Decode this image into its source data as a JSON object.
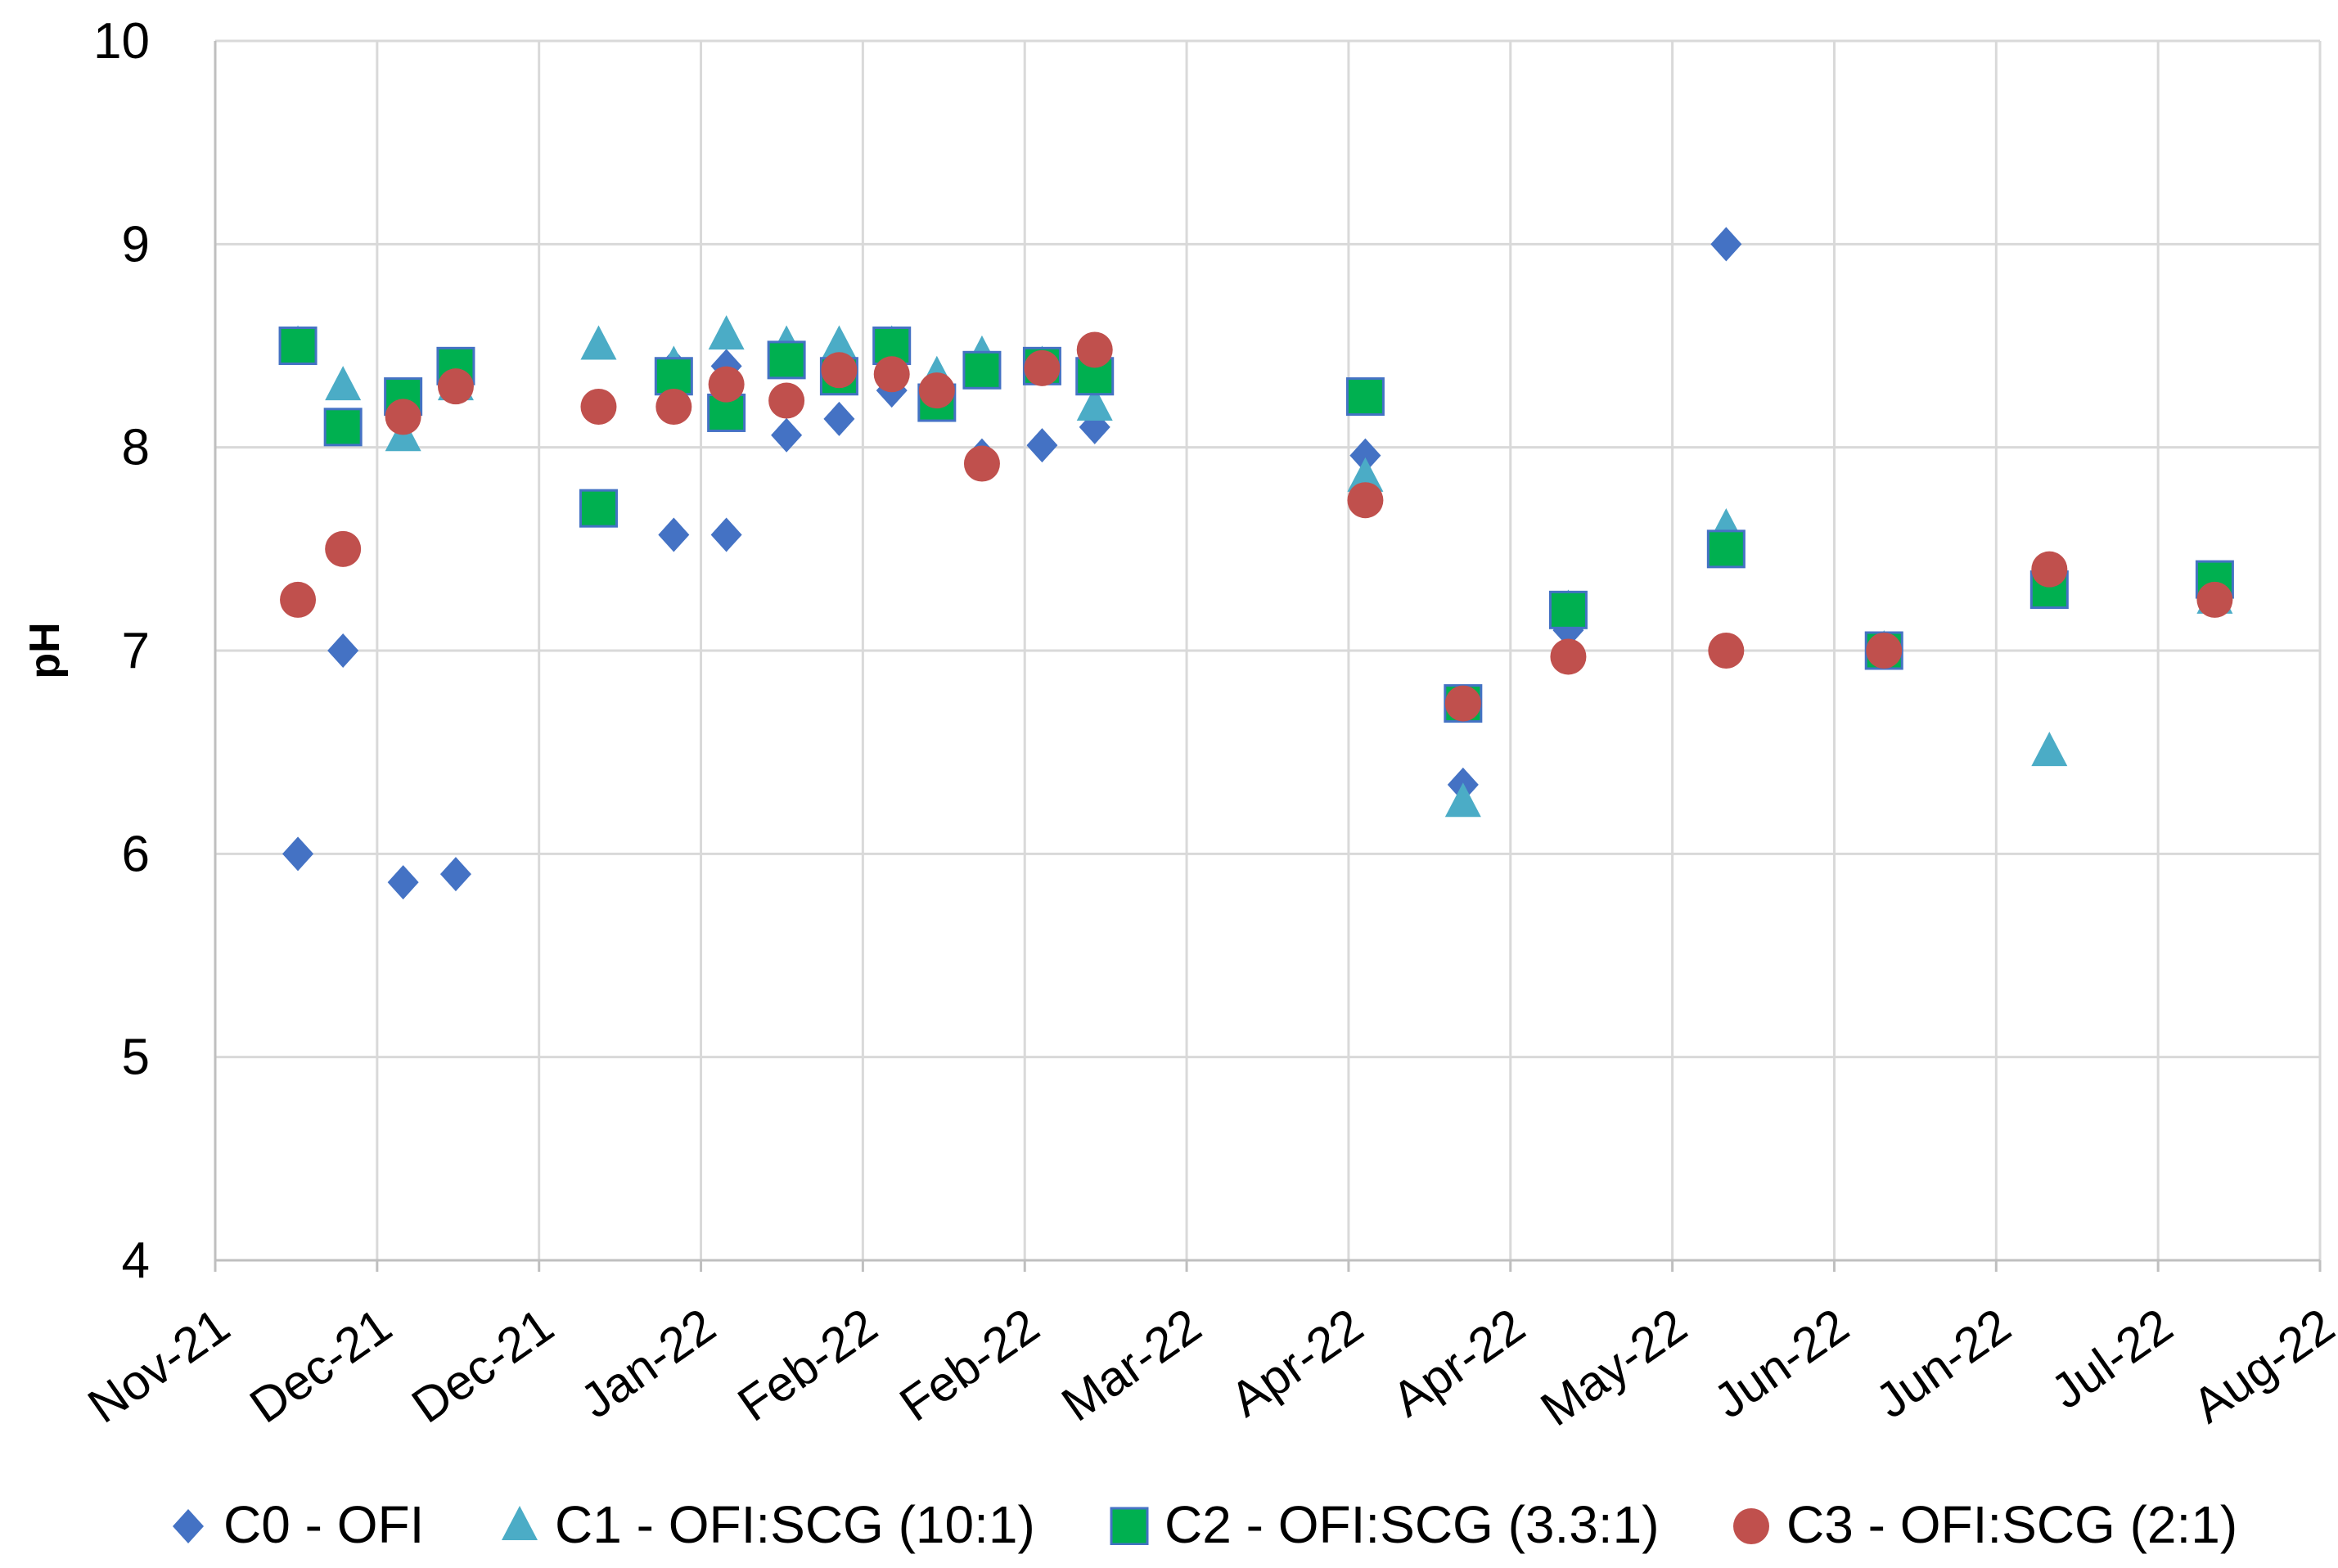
{
  "chart_data": {
    "type": "scatter",
    "title": "",
    "xlabel": "",
    "ylabel": "pH",
    "ylim": [
      4,
      10
    ],
    "y_ticks": [
      4,
      5,
      6,
      7,
      8,
      9,
      10
    ],
    "x_tick_labels": [
      "Nov-21",
      "Dec-21",
      "Dec-21",
      "Jan-22",
      "Feb-22",
      "Feb-22",
      "Mar-22",
      "Apr-22",
      "Apr-22",
      "May-22",
      "Jun-22",
      "Jun-22",
      "Jul-22",
      "Aug-22"
    ],
    "x_unit": "days since 2021-11-01",
    "xlim": [
      0,
      280
    ],
    "grid": true,
    "legend_position": "bottom",
    "series": [
      {
        "name": "C0 - OFI",
        "marker": "diamond",
        "color": "#4472C4",
        "points": [
          [
            11,
            6.0
          ],
          [
            17,
            7.0
          ],
          [
            25,
            5.86
          ],
          [
            32,
            5.9
          ],
          [
            61,
            8.4
          ],
          [
            68,
            8.4
          ],
          [
            76,
            8.06
          ],
          [
            83,
            8.14
          ],
          [
            90,
            8.28
          ],
          [
            96,
            8.25
          ],
          [
            102,
            7.96
          ],
          [
            110,
            8.01
          ],
          [
            117,
            8.1
          ],
          [
            153,
            7.96
          ],
          [
            166,
            6.34
          ],
          [
            180,
            7.1
          ],
          [
            201,
            9.0
          ],
          [
            222,
            7.0
          ],
          [
            244,
            7.3
          ],
          [
            266,
            7.3
          ],
          [
            68,
            7.57
          ],
          [
            61,
            7.57
          ]
        ]
      },
      {
        "name": "C1 - OFI:SCG (10:1)",
        "marker": "triangle",
        "color": "#4BACC6",
        "points": [
          [
            11,
            8.5
          ],
          [
            17,
            8.3
          ],
          [
            25,
            8.05
          ],
          [
            32,
            8.3
          ],
          [
            51,
            8.5
          ],
          [
            61,
            8.4
          ],
          [
            68,
            8.55
          ],
          [
            76,
            8.5
          ],
          [
            83,
            8.5
          ],
          [
            90,
            8.5
          ],
          [
            96,
            8.35
          ],
          [
            102,
            8.45
          ],
          [
            110,
            8.4
          ],
          [
            117,
            8.2
          ],
          [
            153,
            7.85
          ],
          [
            166,
            6.25
          ],
          [
            180,
            7.2
          ],
          [
            201,
            7.6
          ],
          [
            222,
            7.0
          ],
          [
            244,
            6.5
          ],
          [
            266,
            7.25
          ]
        ]
      },
      {
        "name": "C2 - OFI:SCG (3.3:1)",
        "marker": "square",
        "color": "#00B050",
        "points": [
          [
            11,
            8.5
          ],
          [
            17,
            8.1
          ],
          [
            25,
            8.25
          ],
          [
            32,
            8.4
          ],
          [
            51,
            7.7
          ],
          [
            61,
            8.35
          ],
          [
            68,
            8.17
          ],
          [
            76,
            8.43
          ],
          [
            83,
            8.35
          ],
          [
            90,
            8.5
          ],
          [
            96,
            8.22
          ],
          [
            102,
            8.38
          ],
          [
            110,
            8.4
          ],
          [
            117,
            8.35
          ],
          [
            153,
            8.25
          ],
          [
            166,
            6.74
          ],
          [
            180,
            7.2
          ],
          [
            201,
            7.5
          ],
          [
            222,
            7.0
          ],
          [
            244,
            7.3
          ],
          [
            266,
            7.35
          ]
        ]
      },
      {
        "name": "C3 - OFI:SCG (2:1)",
        "marker": "circle",
        "color": "#C0504D",
        "points": [
          [
            11,
            7.25
          ],
          [
            17,
            7.5
          ],
          [
            25,
            8.15
          ],
          [
            32,
            8.3
          ],
          [
            51,
            8.2
          ],
          [
            61,
            8.2
          ],
          [
            68,
            8.31
          ],
          [
            76,
            8.23
          ],
          [
            83,
            8.38
          ],
          [
            90,
            8.36
          ],
          [
            96,
            8.28
          ],
          [
            102,
            7.92
          ],
          [
            110,
            8.39
          ],
          [
            117,
            8.48
          ],
          [
            153,
            7.74
          ],
          [
            166,
            6.74
          ],
          [
            180,
            6.97
          ],
          [
            201,
            7.0
          ],
          [
            222,
            7.0
          ],
          [
            244,
            7.4
          ],
          [
            266,
            7.25
          ]
        ]
      }
    ]
  }
}
